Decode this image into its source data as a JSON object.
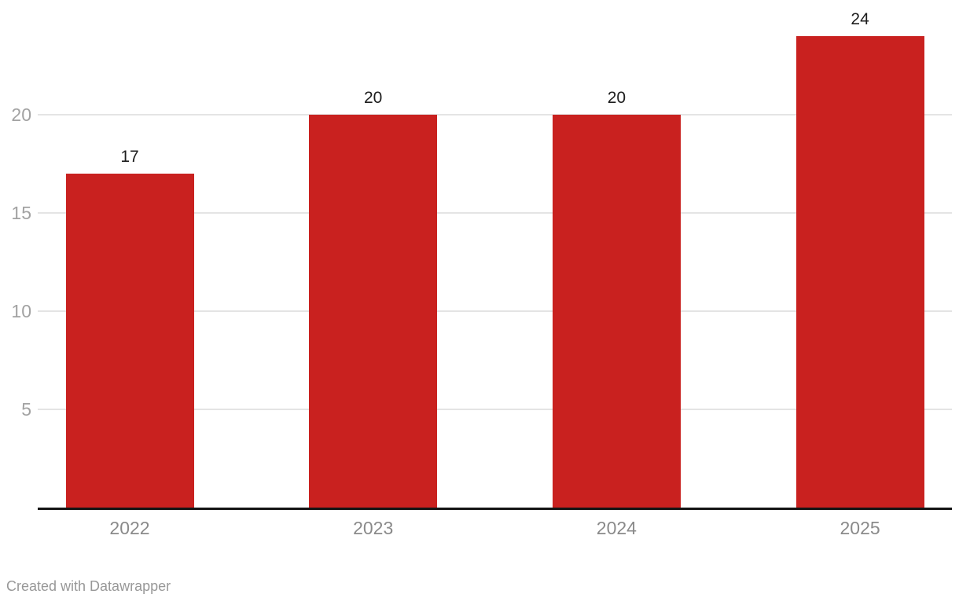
{
  "chart_data": {
    "type": "bar",
    "categories": [
      "2022",
      "2023",
      "2024",
      "2025"
    ],
    "values": [
      17,
      20,
      20,
      24
    ],
    "value_labels": [
      "17",
      "20",
      "20",
      "24"
    ],
    "yticks": [
      5,
      10,
      15,
      20
    ],
    "ytick_labels": [
      "5",
      "10",
      "15",
      "20"
    ],
    "ylim": [
      0,
      24
    ],
    "title": "",
    "xlabel": "",
    "ylabel": "",
    "grid": true,
    "legend": "none",
    "bar_color": "#c9211f",
    "gridline_color": "#e4e4e4",
    "axis_line_color": "#141414",
    "tick_label_color": "#8a8a8a",
    "value_label_color": "#1d1d1d"
  },
  "footer": {
    "credit": "Created with Datawrapper"
  }
}
